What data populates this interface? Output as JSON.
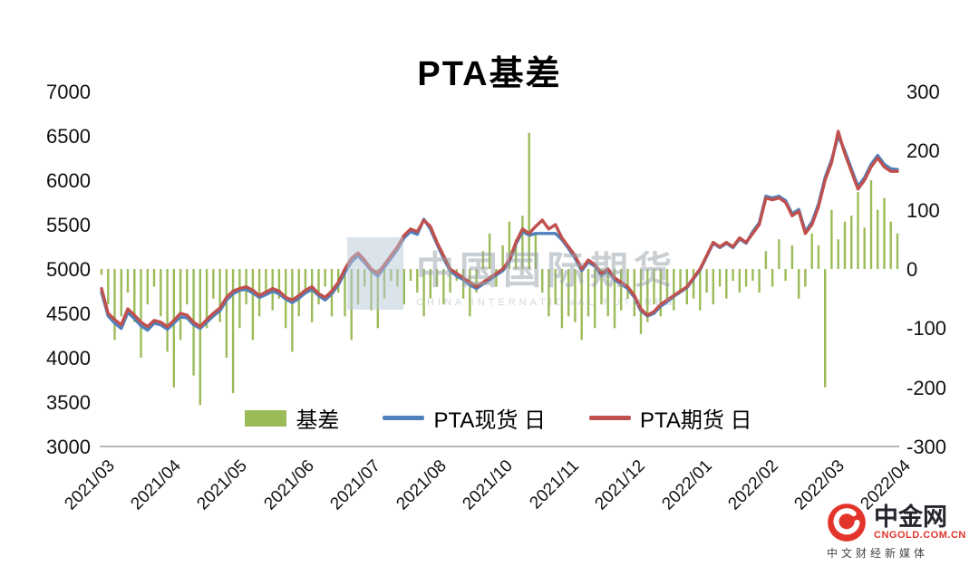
{
  "title": "PTA基差",
  "watermark": {
    "text": "中国国际期货",
    "subtext": "CHINA INTERNATIONAL FUTURES"
  },
  "branding": {
    "name": "中金网",
    "domain": "CNGOLD.COM.CN",
    "tagline": "中文财经新媒体"
  },
  "chart_data": {
    "type": "combo",
    "title": "PTA基差",
    "x_labels": [
      "2021/03",
      "2021/04",
      "2021/05",
      "2021/06",
      "2021/07",
      "2021/08",
      "2021/10",
      "2021/11",
      "2021/12",
      "2022/01",
      "2022/02",
      "2022/03",
      "2022/04"
    ],
    "left_axis": {
      "min": 3000,
      "max": 7000,
      "ticks": [
        7000,
        6500,
        6000,
        5500,
        5000,
        4500,
        4000,
        3500,
        3000
      ]
    },
    "right_axis": {
      "min": -300,
      "max": 300,
      "ticks": [
        300,
        200,
        100,
        0,
        -100,
        -200,
        -300
      ]
    },
    "grid": false,
    "legend_position": "bottom-inside",
    "series": [
      {
        "name": "基差",
        "type": "bar",
        "axis": "right",
        "color": "#9BBB59",
        "values": [
          -10,
          -60,
          -120,
          -80,
          -40,
          -90,
          -150,
          -60,
          -30,
          -80,
          -140,
          -200,
          -120,
          -60,
          -180,
          -230,
          -100,
          -50,
          -90,
          -150,
          -210,
          -100,
          -60,
          -120,
          -80,
          -40,
          -70,
          -50,
          -100,
          -140,
          -80,
          -40,
          -90,
          -60,
          -30,
          -80,
          -40,
          -80,
          -120,
          -60,
          -30,
          -70,
          -100,
          -50,
          -20,
          -30,
          -60,
          -20,
          -40,
          -80,
          -50,
          -30,
          -60,
          -40,
          -20,
          -50,
          -80,
          -40,
          30,
          60,
          -30,
          40,
          80,
          50,
          90,
          230,
          60,
          -40,
          -80,
          -60,
          -100,
          -80,
          -90,
          -120,
          -80,
          -100,
          -60,
          -80,
          -100,
          -70,
          -50,
          -80,
          -110,
          -90,
          -60,
          -80,
          -50,
          -70,
          -40,
          -60,
          -50,
          -70,
          -40,
          -60,
          -30,
          -50,
          -20,
          -40,
          -30,
          -20,
          -40,
          30,
          -30,
          50,
          -20,
          40,
          -50,
          -30,
          60,
          40,
          -200,
          100,
          50,
          80,
          90,
          130,
          70,
          150,
          100,
          120,
          80,
          60
        ]
      },
      {
        "name": "PTA现货 日",
        "type": "line",
        "axis": "left",
        "color": "#4F81BD",
        "values": [
          4740,
          4470,
          4390,
          4330,
          4510,
          4440,
          4360,
          4310,
          4390,
          4370,
          4320,
          4390,
          4460,
          4450,
          4370,
          4330,
          4400,
          4470,
          4530,
          4650,
          4720,
          4760,
          4770,
          4730,
          4680,
          4710,
          4750,
          4720,
          4660,
          4620,
          4670,
          4730,
          4770,
          4700,
          4650,
          4720,
          4820,
          4960,
          5080,
          5150,
          5070,
          4980,
          4920,
          5020,
          5120,
          5220,
          5350,
          5420,
          5390,
          5560,
          5450,
          5280,
          5120,
          4980,
          4920,
          4880,
          4820,
          4780,
          4830,
          4880,
          4930,
          4980,
          5080,
          5280,
          5420,
          5380,
          5400,
          5400,
          5400,
          5400,
          5330,
          5230,
          5120,
          4980,
          5080,
          5030,
          4930,
          4980,
          4880,
          4830,
          4780,
          4680,
          4530,
          4470,
          4500,
          4580,
          4630,
          4690,
          4740,
          4790,
          4890,
          4990,
          5140,
          5290,
          5240,
          5290,
          5240,
          5340,
          5290,
          5420,
          5520,
          5820,
          5800,
          5820,
          5770,
          5620,
          5670,
          5420,
          5530,
          5730,
          6030,
          6230,
          6500,
          6330,
          6130,
          5930,
          6030,
          6180,
          6280,
          6180,
          6130,
          6120
        ]
      },
      {
        "name": "PTA期货 日",
        "type": "line",
        "axis": "left",
        "color": "#C0504D",
        "values": [
          4780,
          4500,
          4430,
          4370,
          4550,
          4480,
          4400,
          4350,
          4420,
          4400,
          4350,
          4420,
          4500,
          4480,
          4400,
          4350,
          4430,
          4500,
          4560,
          4680,
          4750,
          4780,
          4800,
          4760,
          4700,
          4740,
          4780,
          4750,
          4680,
          4650,
          4700,
          4760,
          4800,
          4720,
          4680,
          4750,
          4850,
          5000,
          5120,
          5180,
          5100,
          5000,
          4950,
          5050,
          5150,
          5250,
          5380,
          5450,
          5420,
          5550,
          5480,
          5300,
          5150,
          5000,
          4950,
          4900,
          4850,
          4800,
          4850,
          4900,
          4950,
          5000,
          5100,
          5300,
          5450,
          5400,
          5480,
          5550,
          5450,
          5500,
          5350,
          5250,
          5150,
          5000,
          5100,
          5050,
          4950,
          5000,
          4900,
          4850,
          4800,
          4700,
          4550,
          4480,
          4520,
          4600,
          4650,
          4700,
          4750,
          4800,
          4900,
          5000,
          5150,
          5300,
          5250,
          5300,
          5250,
          5350,
          5300,
          5400,
          5500,
          5800,
          5780,
          5800,
          5750,
          5600,
          5650,
          5400,
          5500,
          5700,
          6000,
          6200,
          6550,
          6300,
          6100,
          5900,
          6000,
          6150,
          6250,
          6150,
          6100,
          6100
        ]
      }
    ]
  }
}
